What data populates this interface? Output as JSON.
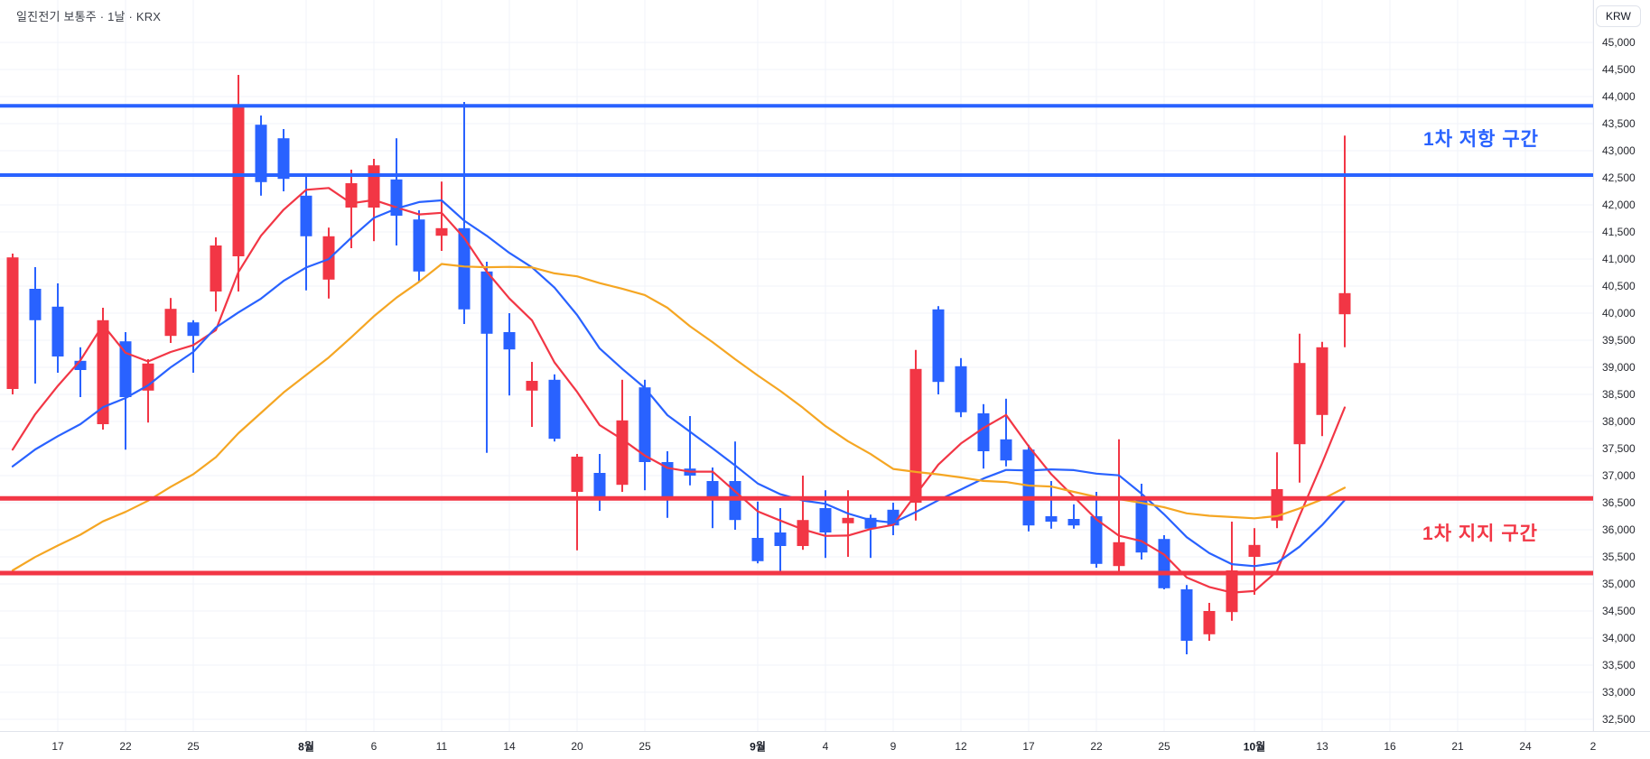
{
  "header": {
    "title": "일진전기 보통주 · 1날 · KRX"
  },
  "annotations": {
    "resistance_label": "1차 저항 구간",
    "support_label": "1차 지지 구간"
  },
  "price_axis": {
    "currency": "KRW"
  },
  "chart_data": {
    "type": "candlestick",
    "title": "일진전기 보통주 · 1날 · KRX",
    "symbol": "일진전기 보통주",
    "interval": "1날",
    "exchange": "KRX",
    "ylabel": "KRW",
    "grid": true,
    "y_ticks": {
      "min": 32500,
      "max": 45000,
      "step": 500
    },
    "x_ticks": [
      {
        "i": 2,
        "label": "17",
        "bold": false
      },
      {
        "i": 5,
        "label": "22",
        "bold": false
      },
      {
        "i": 8,
        "label": "25",
        "bold": false
      },
      {
        "i": 13,
        "label": "8월",
        "bold": true
      },
      {
        "i": 16,
        "label": "6",
        "bold": false
      },
      {
        "i": 19,
        "label": "11",
        "bold": false
      },
      {
        "i": 22,
        "label": "14",
        "bold": false
      },
      {
        "i": 25,
        "label": "20",
        "bold": false
      },
      {
        "i": 28,
        "label": "25",
        "bold": false
      },
      {
        "i": 33,
        "label": "9월",
        "bold": true
      },
      {
        "i": 36,
        "label": "4",
        "bold": false
      },
      {
        "i": 39,
        "label": "9",
        "bold": false
      },
      {
        "i": 42,
        "label": "12",
        "bold": false
      },
      {
        "i": 45,
        "label": "17",
        "bold": false
      },
      {
        "i": 48,
        "label": "22",
        "bold": false
      },
      {
        "i": 51,
        "label": "25",
        "bold": false
      },
      {
        "i": 55,
        "label": "10월",
        "bold": true
      },
      {
        "i": 58,
        "label": "13",
        "bold": false
      },
      {
        "i": 61,
        "label": "16",
        "bold": false
      },
      {
        "i": 64,
        "label": "21",
        "bold": false
      },
      {
        "i": 67,
        "label": "24",
        "bold": false
      },
      {
        "i": 70,
        "label": "2",
        "bold": false
      }
    ],
    "columns": [
      "date",
      "open",
      "high",
      "low",
      "close"
    ],
    "candles": [
      [
        "7/15",
        38600,
        41100,
        38500,
        41030
      ],
      [
        "7/16",
        40450,
        40850,
        38700,
        39870
      ],
      [
        "7/17",
        40120,
        40550,
        38900,
        39200
      ],
      [
        "7/18",
        39120,
        39370,
        38450,
        38950
      ],
      [
        "7/21",
        37950,
        40100,
        37850,
        39870
      ],
      [
        "7/22",
        39480,
        39650,
        37480,
        38450
      ],
      [
        "7/23",
        38570,
        39150,
        37980,
        39070
      ],
      [
        "7/24",
        39580,
        40280,
        39450,
        40080
      ],
      [
        "7/25",
        39830,
        39870,
        38900,
        39580
      ],
      [
        "7/28",
        40400,
        41400,
        40030,
        41250
      ],
      [
        "7/29",
        41050,
        44400,
        40400,
        43820
      ],
      [
        "7/30",
        43480,
        43650,
        42170,
        42420
      ],
      [
        "7/31",
        43230,
        43400,
        42250,
        42480
      ],
      [
        "8/1",
        42170,
        42570,
        40420,
        41420
      ],
      [
        "8/4",
        40620,
        41580,
        40270,
        41420
      ],
      [
        "8/5",
        41950,
        42650,
        41200,
        42400
      ],
      [
        "8/6",
        41950,
        42850,
        41330,
        42730
      ],
      [
        "8/7",
        42470,
        43230,
        41250,
        41800
      ],
      [
        "8/8",
        41730,
        41900,
        40570,
        40770
      ],
      [
        "8/11",
        41430,
        42430,
        41150,
        41570
      ],
      [
        "8/12",
        41570,
        43900,
        39800,
        40070
      ],
      [
        "8/13",
        40770,
        40950,
        37420,
        39620
      ],
      [
        "8/14",
        39650,
        40000,
        38480,
        39330
      ],
      [
        "8/18",
        38570,
        39100,
        37900,
        38750
      ],
      [
        "8/19",
        38770,
        38870,
        37630,
        37680
      ],
      [
        "8/20",
        36700,
        37400,
        35620,
        37350
      ],
      [
        "8/21",
        37050,
        37400,
        36350,
        36550
      ],
      [
        "8/22",
        36830,
        38770,
        36700,
        38020
      ],
      [
        "8/25",
        38630,
        38770,
        36730,
        37250
      ],
      [
        "8/26",
        37250,
        37450,
        36220,
        36550
      ],
      [
        "8/27",
        37130,
        38100,
        36820,
        37000
      ],
      [
        "8/28",
        36900,
        37150,
        36030,
        36550
      ],
      [
        "8/29",
        36900,
        37630,
        36000,
        36180
      ],
      [
        "9/1",
        35850,
        36520,
        35380,
        35420
      ],
      [
        "9/2",
        35950,
        36400,
        35180,
        35700
      ],
      [
        "9/3",
        35700,
        37000,
        35630,
        36180
      ],
      [
        "9/4",
        36400,
        36730,
        35480,
        35950
      ],
      [
        "9/5",
        36120,
        36730,
        35500,
        36220
      ],
      [
        "9/8",
        36220,
        36280,
        35480,
        36020
      ],
      [
        "9/9",
        36370,
        36500,
        35900,
        36080
      ],
      [
        "9/10",
        36500,
        39320,
        36170,
        38970
      ],
      [
        "9/11",
        40070,
        40130,
        38500,
        38730
      ],
      [
        "9/12",
        39020,
        39170,
        38080,
        38170
      ],
      [
        "9/15",
        38150,
        38320,
        37130,
        37450
      ],
      [
        "9/16",
        37670,
        38420,
        37170,
        37280
      ],
      [
        "9/17",
        37480,
        37570,
        35970,
        36080
      ],
      [
        "9/18",
        36250,
        36900,
        36020,
        36150
      ],
      [
        "9/19",
        36200,
        36470,
        36020,
        36080
      ],
      [
        "9/22",
        36250,
        36700,
        35300,
        35370
      ],
      [
        "9/23",
        35330,
        37670,
        35200,
        35770
      ],
      [
        "9/24",
        36550,
        36850,
        35450,
        35580
      ],
      [
        "9/25",
        35830,
        35900,
        34900,
        34920
      ],
      [
        "9/26",
        34900,
        34980,
        33700,
        33950
      ],
      [
        "9/29",
        34070,
        34650,
        33950,
        34500
      ],
      [
        "9/30",
        34480,
        36150,
        34320,
        35250
      ],
      [
        "10/1",
        35500,
        36030,
        34800,
        35720
      ],
      [
        "10/2",
        36170,
        37430,
        36030,
        36750
      ],
      [
        "10/10",
        37580,
        39620,
        36870,
        39080
      ],
      [
        "10/13",
        38120,
        39470,
        37730,
        39370
      ],
      [
        "10/14",
        39980,
        43280,
        39370,
        40370
      ]
    ],
    "zones": {
      "resistance": {
        "label": "1차 저항 구간",
        "color": "#2962ff",
        "top": 43830,
        "bottom": 42550
      },
      "support": {
        "label": "1차 지지 구간",
        "color": "#f23645",
        "top": 36580,
        "bottom": 35200
      }
    },
    "moving_averages": [
      {
        "name": "MA5",
        "period": 5,
        "color": "#f23645",
        "left_anchor": 37480
      },
      {
        "name": "MA10",
        "period": 10,
        "color": "#2962ff",
        "left_anchor": 37170
      },
      {
        "name": "MA20",
        "period": 20,
        "color": "#f5a623",
        "left_anchor": 35250
      }
    ],
    "colors": {
      "up": "#f23645",
      "down": "#2962ff",
      "grid": "#f0f3fa",
      "axis_text": "#25272e",
      "border": "#e0e3eb",
      "background": "#ffffff"
    },
    "legend_position": "none"
  }
}
